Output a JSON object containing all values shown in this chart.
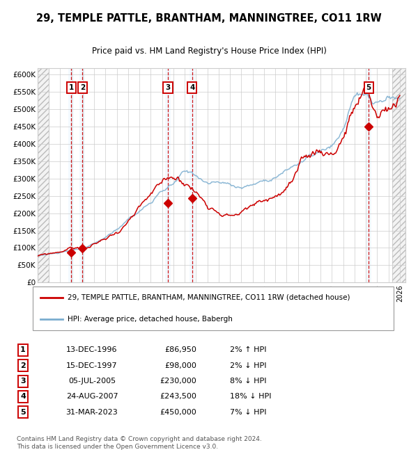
{
  "title": "29, TEMPLE PATTLE, BRANTHAM, MANNINGTREE, CO11 1RW",
  "subtitle": "Price paid vs. HM Land Registry's House Price Index (HPI)",
  "xlim_start": 1994.0,
  "xlim_end": 2026.5,
  "ylim_min": 0,
  "ylim_max": 620000,
  "yticks": [
    0,
    50000,
    100000,
    150000,
    200000,
    250000,
    300000,
    350000,
    400000,
    450000,
    500000,
    550000,
    600000
  ],
  "ytick_labels": [
    "£0",
    "£50K",
    "£100K",
    "£150K",
    "£200K",
    "£250K",
    "£300K",
    "£350K",
    "£400K",
    "£450K",
    "£500K",
    "£550K",
    "£600K"
  ],
  "sale_dates_decimal": [
    1996.96,
    1997.96,
    2005.51,
    2007.65,
    2023.25
  ],
  "sale_prices": [
    86950,
    98000,
    230000,
    243500,
    450000
  ],
  "sale_labels": [
    "1",
    "2",
    "3",
    "4",
    "5"
  ],
  "sale_label_dates": [
    "13-DEC-1996",
    "15-DEC-1997",
    "05-JUL-2005",
    "24-AUG-2007",
    "31-MAR-2023"
  ],
  "sale_price_strs": [
    "£86,950",
    "£98,000",
    "£230,000",
    "£243,500",
    "£450,000"
  ],
  "sale_hpi_changes": [
    "2% ↑ HPI",
    "2% ↓ HPI",
    "8% ↓ HPI",
    "18% ↓ HPI",
    "7% ↓ HPI"
  ],
  "red_line_color": "#cc0000",
  "blue_line_color": "#7aadcf",
  "marker_color": "#cc0000",
  "vline_color": "#cc0000",
  "shade_color": "#ddeeff",
  "grid_color": "#cccccc",
  "legend1_label": "29, TEMPLE PATTLE, BRANTHAM, MANNINGTREE, CO11 1RW (detached house)",
  "legend2_label": "HPI: Average price, detached house, Babergh",
  "footer1": "Contains HM Land Registry data © Crown copyright and database right 2024.",
  "footer2": "This data is licensed under the Open Government Licence v3.0.",
  "bg_color": "#ffffff"
}
